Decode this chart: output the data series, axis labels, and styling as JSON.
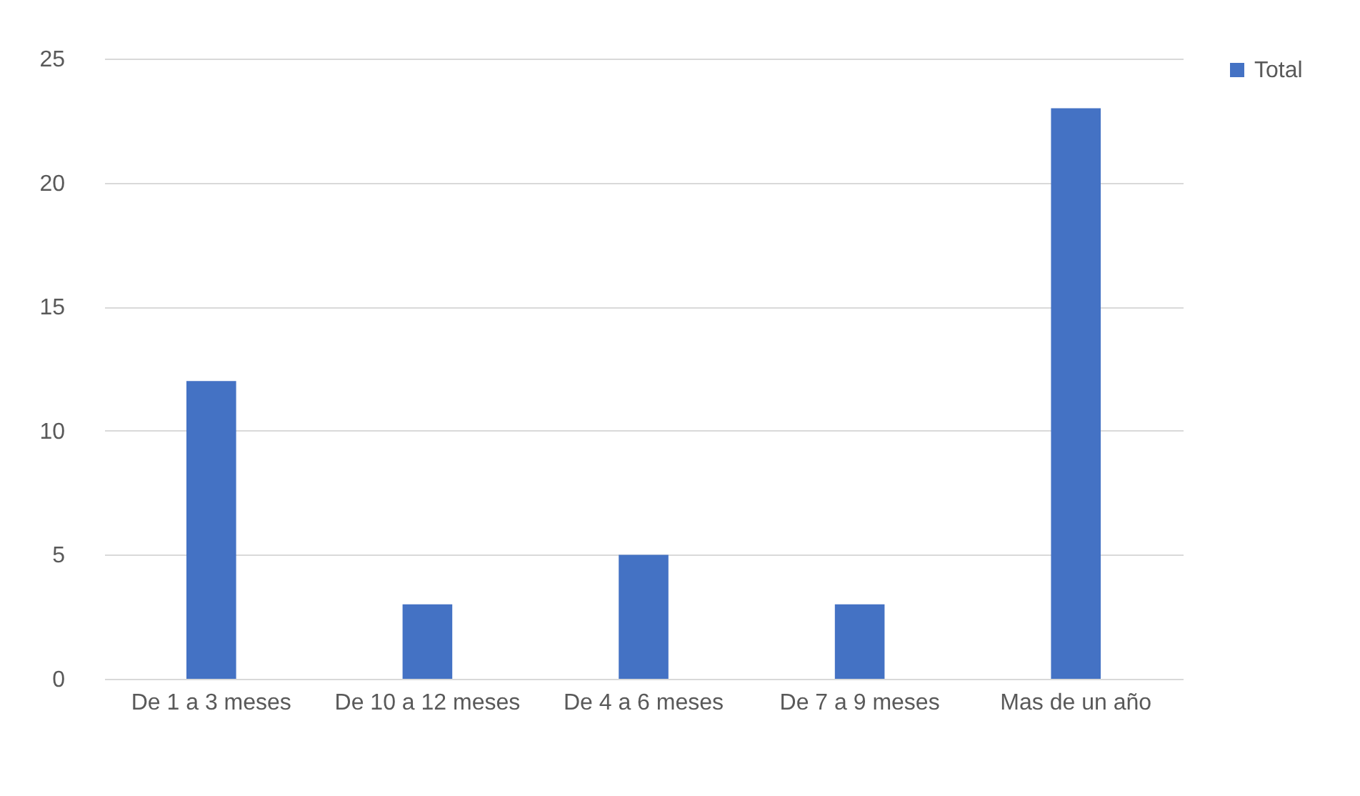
{
  "chart_data": {
    "type": "bar",
    "categories": [
      "De 1 a 3 meses",
      "De 10 a 12 meses",
      "De 4 a 6 meses",
      "De 7 a 9 meses",
      "Mas de un año"
    ],
    "series": [
      {
        "name": "Total",
        "color": "#4472c4",
        "values": [
          12,
          3,
          5,
          3,
          23
        ]
      }
    ],
    "ylim": [
      0,
      25
    ],
    "yticks": [
      0,
      5,
      10,
      15,
      20,
      25
    ],
    "grid": "y",
    "legend": "right"
  }
}
